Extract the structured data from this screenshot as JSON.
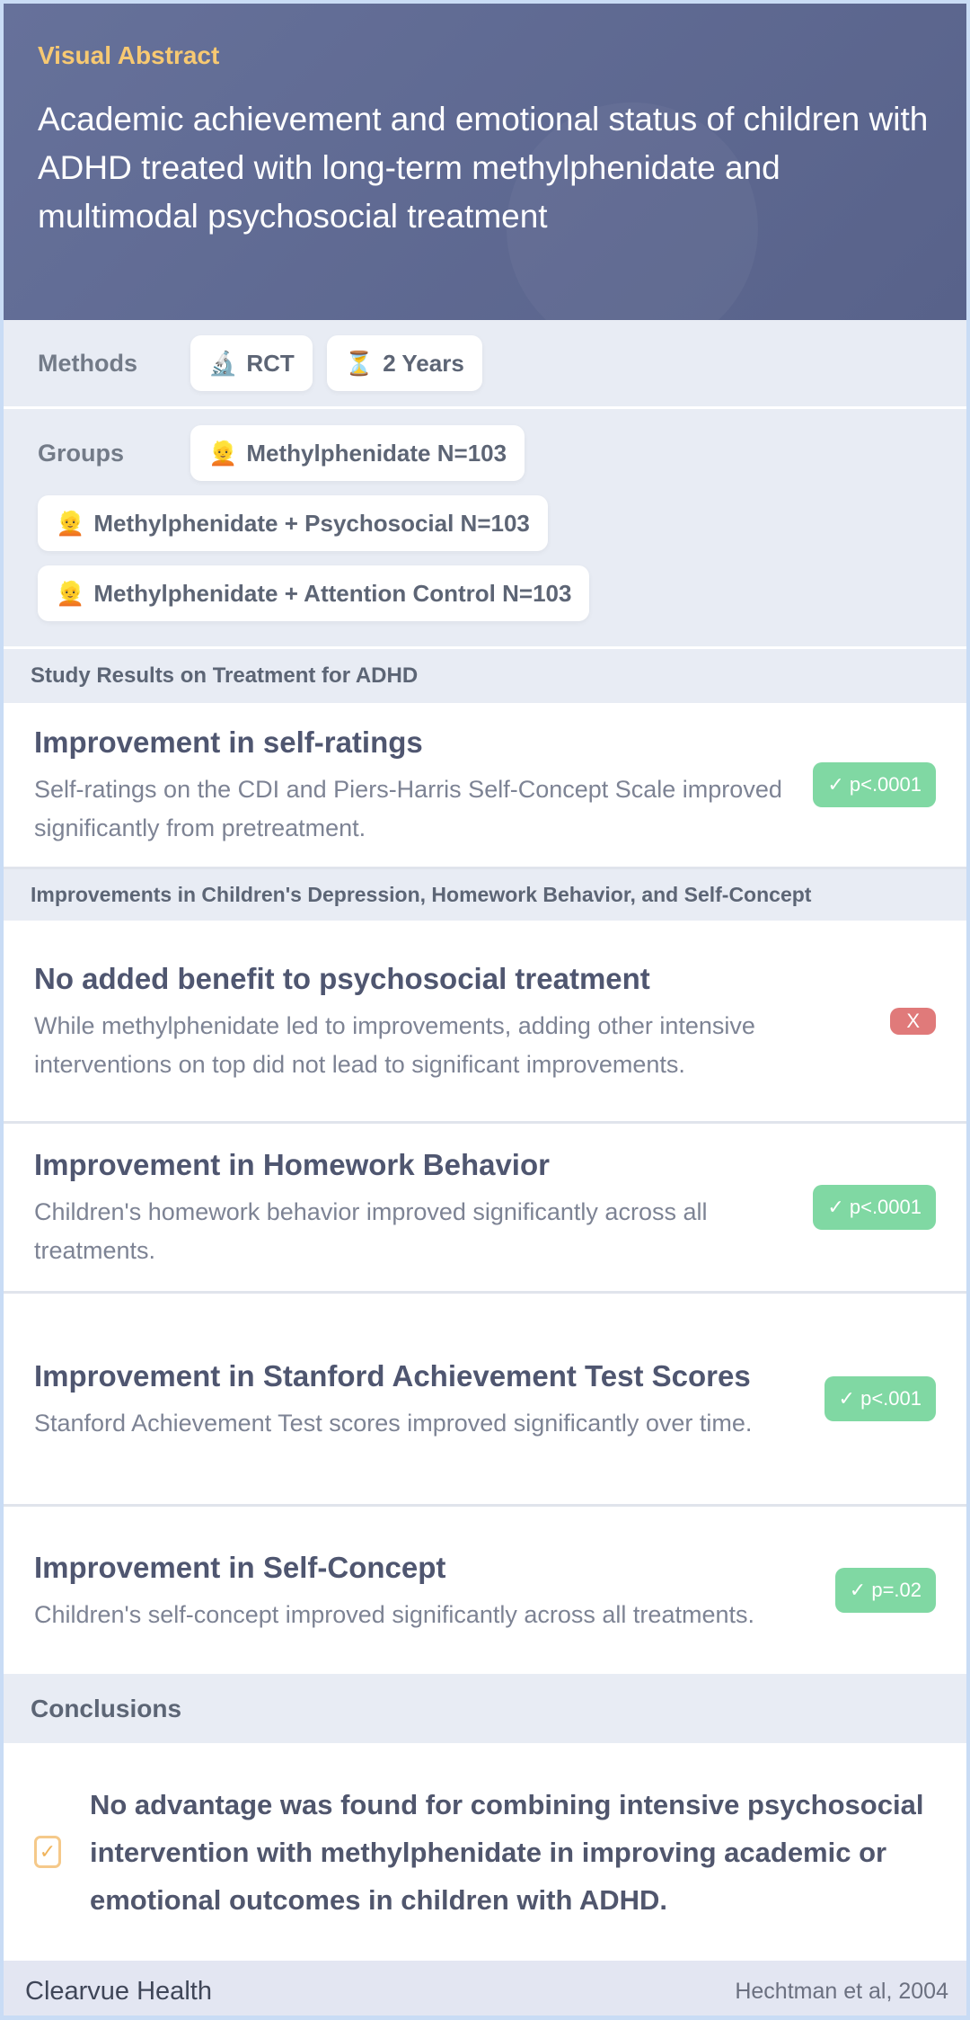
{
  "header": {
    "kicker": "Visual Abstract",
    "title": "Academic achievement and emotional status of children with ADHD treated with long-term methylphenidate and multimodal psychosocial treatment"
  },
  "methods": {
    "label": "Methods",
    "items": [
      {
        "icon": "microscope-icon",
        "glyph": "🔬",
        "label": "RCT"
      },
      {
        "icon": "hourglass-icon",
        "glyph": "⏳",
        "label": "2 Years"
      }
    ]
  },
  "groups": {
    "label": "Groups",
    "items": [
      {
        "icon": "person-icon",
        "glyph": "👱",
        "label": "Methylphenidate N=103"
      },
      {
        "icon": "person-icon",
        "glyph": "👱",
        "label": "Methylphenidate + Psychosocial N=103"
      },
      {
        "icon": "person-icon",
        "glyph": "👱",
        "label": "Methylphenidate + Attention Control N=103"
      }
    ]
  },
  "sections": [
    "Study Results on Treatment for ADHD",
    "Improvements in Children's Depression, Homework Behavior, and Self-Concept"
  ],
  "results": [
    {
      "title": "Improvement in self-ratings",
      "text": "Self-ratings on the CDI and Piers-Harris Self-Concept Scale improved significantly from pretreatment.",
      "badge": "✓ p<.0001",
      "status": "significant"
    },
    {
      "title": "No added benefit to psychosocial treatment",
      "text": "While methylphenidate led to improvements, adding other intensive interventions on top did not lead to significant improvements.",
      "badge": "X",
      "status": "not-significant"
    },
    {
      "title": "Improvement in Homework Behavior",
      "text": "Children's homework behavior improved significantly across all treatments.",
      "badge": "✓ p<.0001",
      "status": "significant"
    },
    {
      "title": "Improvement in Stanford Achievement Test Scores",
      "text": "Stanford Achievement Test scores improved significantly over time.",
      "badge": "✓ p<.001",
      "status": "significant"
    },
    {
      "title": "Improvement in Self-Concept",
      "text": "Children's self-concept improved significantly across all treatments.",
      "badge": "✓ p=.02",
      "status": "significant"
    }
  ],
  "conclusions": {
    "label": "Conclusions",
    "text": "No advantage was found for combining intensive psychosocial intervention with methylphenidate in improving academic or emotional outcomes in children with ADHD.",
    "check": "✓"
  },
  "footer": {
    "brand": "Clearvue Health",
    "citation": "Hechtman et al, 2004"
  },
  "colors": {
    "header": "#5f6a92",
    "kicker": "#f7c972",
    "success": "#80d8a3",
    "danger": "#e07a7a"
  }
}
